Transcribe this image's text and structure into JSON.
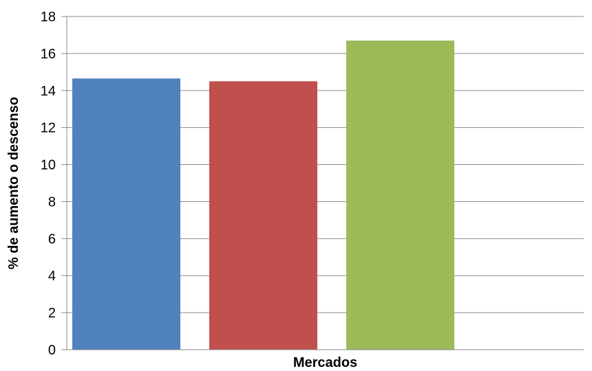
{
  "chart_data": {
    "type": "bar",
    "title": "",
    "xlabel": "Mercados",
    "ylabel": "% de aumento o descenso",
    "ylim": [
      0,
      18
    ],
    "yticks": [
      "0",
      "2",
      "4",
      "6",
      "8",
      "10",
      "12",
      "14",
      "16",
      "18"
    ],
    "grid": true,
    "legend": "none",
    "bars": [
      {
        "value": 14.65,
        "color": "#4f81bd"
      },
      {
        "value": 14.5,
        "color": "#c0504d"
      },
      {
        "value": 16.7,
        "color": "#9bbb59"
      }
    ]
  }
}
